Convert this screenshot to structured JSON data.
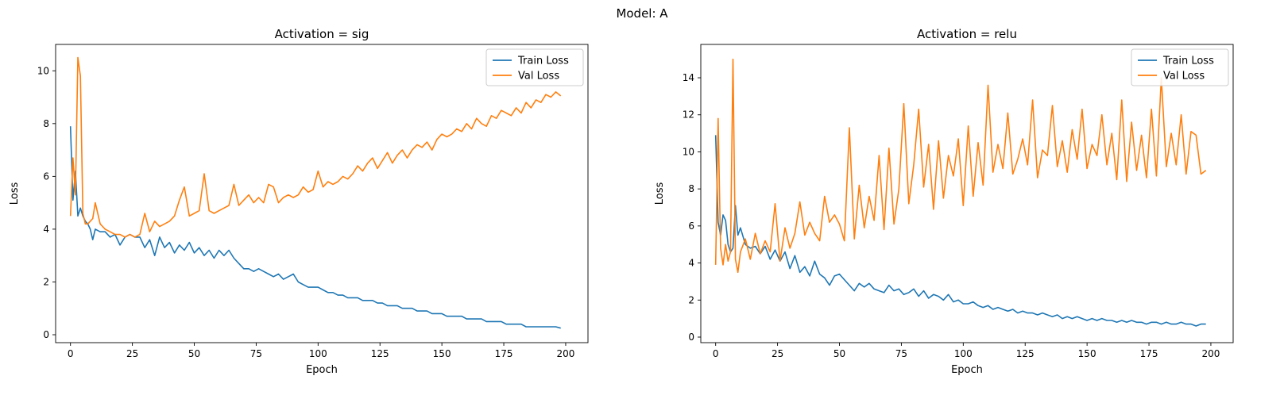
{
  "figure": {
    "suptitle": "Model: A"
  },
  "chart_data": [
    {
      "type": "line",
      "title": "Activation = sig",
      "xlabel": "Epoch",
      "ylabel": "Loss",
      "xlim": [
        -6,
        209
      ],
      "ylim": [
        -0.3,
        11.0
      ],
      "xticks": [
        0,
        25,
        50,
        75,
        100,
        125,
        150,
        175,
        200
      ],
      "yticks": [
        0,
        2,
        4,
        6,
        8,
        10
      ],
      "legend_position": "upper right",
      "series": [
        {
          "name": "Train Loss",
          "color": "#1f77b4",
          "x": [
            0,
            1,
            2,
            3,
            4,
            5,
            6,
            7,
            8,
            9,
            10,
            12,
            14,
            16,
            18,
            20,
            22,
            24,
            26,
            28,
            30,
            32,
            34,
            36,
            38,
            40,
            42,
            44,
            46,
            48,
            50,
            52,
            54,
            56,
            58,
            60,
            62,
            64,
            66,
            68,
            70,
            72,
            74,
            76,
            78,
            80,
            82,
            84,
            86,
            88,
            90,
            92,
            94,
            96,
            98,
            100,
            102,
            104,
            106,
            108,
            110,
            112,
            114,
            116,
            118,
            120,
            122,
            124,
            126,
            128,
            130,
            132,
            134,
            136,
            138,
            140,
            142,
            144,
            146,
            148,
            150,
            152,
            154,
            156,
            158,
            160,
            162,
            164,
            166,
            168,
            170,
            172,
            174,
            176,
            178,
            180,
            182,
            184,
            186,
            188,
            190,
            192,
            194,
            196,
            198
          ],
          "y": [
            7.9,
            5.1,
            6.2,
            4.5,
            4.8,
            4.5,
            4.3,
            4.2,
            4.0,
            3.6,
            4.0,
            3.9,
            3.9,
            3.7,
            3.8,
            3.4,
            3.7,
            3.8,
            3.7,
            3.7,
            3.3,
            3.6,
            3.0,
            3.7,
            3.3,
            3.5,
            3.1,
            3.4,
            3.2,
            3.5,
            3.1,
            3.3,
            3.0,
            3.2,
            2.9,
            3.2,
            3.0,
            3.2,
            2.9,
            2.7,
            2.5,
            2.5,
            2.4,
            2.5,
            2.4,
            2.3,
            2.2,
            2.3,
            2.1,
            2.2,
            2.3,
            2.0,
            1.9,
            1.8,
            1.8,
            1.8,
            1.7,
            1.6,
            1.6,
            1.5,
            1.5,
            1.4,
            1.4,
            1.4,
            1.3,
            1.3,
            1.3,
            1.2,
            1.2,
            1.1,
            1.1,
            1.1,
            1.0,
            1.0,
            1.0,
            0.9,
            0.9,
            0.9,
            0.8,
            0.8,
            0.8,
            0.7,
            0.7,
            0.7,
            0.7,
            0.6,
            0.6,
            0.6,
            0.6,
            0.5,
            0.5,
            0.5,
            0.5,
            0.4,
            0.4,
            0.4,
            0.4,
            0.3,
            0.3,
            0.3,
            0.3,
            0.3,
            0.3,
            0.3,
            0.25
          ]
        },
        {
          "name": "Val Loss",
          "color": "#ff7f0e",
          "x": [
            0,
            1,
            2,
            3,
            4,
            5,
            6,
            7,
            8,
            9,
            10,
            12,
            14,
            16,
            18,
            20,
            22,
            24,
            26,
            28,
            30,
            32,
            34,
            36,
            38,
            40,
            42,
            44,
            46,
            48,
            50,
            52,
            54,
            56,
            58,
            60,
            62,
            64,
            66,
            68,
            70,
            72,
            74,
            76,
            78,
            80,
            82,
            84,
            86,
            88,
            90,
            92,
            94,
            96,
            98,
            100,
            102,
            104,
            106,
            108,
            110,
            112,
            114,
            116,
            118,
            120,
            122,
            124,
            126,
            128,
            130,
            132,
            134,
            136,
            138,
            140,
            142,
            144,
            146,
            148,
            150,
            152,
            154,
            156,
            158,
            160,
            162,
            164,
            166,
            168,
            170,
            172,
            174,
            176,
            178,
            180,
            182,
            184,
            186,
            188,
            190,
            192,
            194,
            196,
            198
          ],
          "y": [
            4.5,
            6.7,
            5.3,
            10.5,
            9.8,
            4.6,
            4.2,
            4.2,
            4.3,
            4.4,
            5.0,
            4.2,
            4.0,
            3.9,
            3.8,
            3.8,
            3.7,
            3.8,
            3.7,
            3.8,
            4.6,
            3.9,
            4.3,
            4.1,
            4.2,
            4.3,
            4.5,
            5.1,
            5.6,
            4.5,
            4.6,
            4.7,
            6.1,
            4.7,
            4.6,
            4.7,
            4.8,
            4.9,
            5.7,
            4.9,
            5.1,
            5.3,
            5.0,
            5.2,
            5.0,
            5.7,
            5.6,
            5.0,
            5.2,
            5.3,
            5.2,
            5.3,
            5.6,
            5.4,
            5.5,
            6.2,
            5.6,
            5.8,
            5.7,
            5.8,
            6.0,
            5.9,
            6.1,
            6.4,
            6.2,
            6.5,
            6.7,
            6.3,
            6.6,
            6.9,
            6.5,
            6.8,
            7.0,
            6.7,
            7.0,
            7.2,
            7.1,
            7.3,
            7.0,
            7.4,
            7.6,
            7.5,
            7.6,
            7.8,
            7.7,
            8.0,
            7.8,
            8.2,
            8.0,
            7.9,
            8.3,
            8.2,
            8.5,
            8.4,
            8.3,
            8.6,
            8.4,
            8.8,
            8.6,
            8.9,
            8.8,
            9.1,
            9.0,
            9.2,
            9.05
          ]
        }
      ]
    },
    {
      "type": "line",
      "title": "Activation = relu",
      "xlabel": "Epoch",
      "ylabel": "Loss",
      "xlim": [
        -6,
        209
      ],
      "ylim": [
        -0.3,
        15.8
      ],
      "xticks": [
        0,
        25,
        50,
        75,
        100,
        125,
        150,
        175,
        200
      ],
      "yticks": [
        0,
        2,
        4,
        6,
        8,
        10,
        12,
        14
      ],
      "legend_position": "upper right",
      "series": [
        {
          "name": "Train Loss",
          "color": "#1f77b4",
          "x": [
            0,
            1,
            2,
            3,
            4,
            5,
            6,
            7,
            8,
            9,
            10,
            12,
            14,
            16,
            18,
            20,
            22,
            24,
            26,
            28,
            30,
            32,
            34,
            36,
            38,
            40,
            42,
            44,
            46,
            48,
            50,
            52,
            54,
            56,
            58,
            60,
            62,
            64,
            66,
            68,
            70,
            72,
            74,
            76,
            78,
            80,
            82,
            84,
            86,
            88,
            90,
            92,
            94,
            96,
            98,
            100,
            102,
            104,
            106,
            108,
            110,
            112,
            114,
            116,
            118,
            120,
            122,
            124,
            126,
            128,
            130,
            132,
            134,
            136,
            138,
            140,
            142,
            144,
            146,
            148,
            150,
            152,
            154,
            156,
            158,
            160,
            162,
            164,
            166,
            168,
            170,
            172,
            174,
            176,
            178,
            180,
            182,
            184,
            186,
            188,
            190,
            192,
            194,
            196,
            198
          ],
          "y": [
            10.9,
            6.2,
            5.5,
            6.6,
            6.3,
            5.0,
            4.6,
            4.8,
            7.1,
            5.5,
            5.9,
            5.0,
            4.8,
            4.9,
            4.5,
            4.9,
            4.2,
            4.7,
            4.1,
            4.6,
            3.7,
            4.4,
            3.5,
            3.8,
            3.3,
            4.1,
            3.4,
            3.2,
            2.8,
            3.3,
            3.4,
            3.1,
            2.8,
            2.5,
            2.9,
            2.7,
            2.9,
            2.6,
            2.5,
            2.4,
            2.8,
            2.5,
            2.6,
            2.3,
            2.4,
            2.6,
            2.2,
            2.5,
            2.1,
            2.3,
            2.2,
            2.0,
            2.3,
            1.9,
            2.0,
            1.8,
            1.8,
            1.9,
            1.7,
            1.6,
            1.7,
            1.5,
            1.6,
            1.5,
            1.4,
            1.5,
            1.3,
            1.4,
            1.3,
            1.3,
            1.2,
            1.3,
            1.2,
            1.1,
            1.2,
            1.0,
            1.1,
            1.0,
            1.1,
            1.0,
            0.9,
            1.0,
            0.9,
            1.0,
            0.9,
            0.9,
            0.8,
            0.9,
            0.8,
            0.9,
            0.8,
            0.8,
            0.7,
            0.8,
            0.8,
            0.7,
            0.8,
            0.7,
            0.7,
            0.8,
            0.7,
            0.7,
            0.6,
            0.7,
            0.7
          ]
        },
        {
          "name": "Val Loss",
          "color": "#ff7f0e",
          "x": [
            0,
            1,
            2,
            3,
            4,
            5,
            6,
            7,
            8,
            9,
            10,
            12,
            14,
            16,
            18,
            20,
            22,
            24,
            26,
            28,
            30,
            32,
            34,
            36,
            38,
            40,
            42,
            44,
            46,
            48,
            50,
            52,
            54,
            56,
            58,
            60,
            62,
            64,
            66,
            68,
            70,
            72,
            74,
            76,
            78,
            80,
            82,
            84,
            86,
            88,
            90,
            92,
            94,
            96,
            98,
            100,
            102,
            104,
            106,
            108,
            110,
            112,
            114,
            116,
            118,
            120,
            122,
            124,
            126,
            128,
            130,
            132,
            134,
            136,
            138,
            140,
            142,
            144,
            146,
            148,
            150,
            152,
            154,
            156,
            158,
            160,
            162,
            164,
            166,
            168,
            170,
            172,
            174,
            176,
            178,
            180,
            182,
            184,
            186,
            188,
            190,
            192,
            194,
            196,
            198
          ],
          "y": [
            3.9,
            11.8,
            4.8,
            3.9,
            5.0,
            4.1,
            4.6,
            15.0,
            4.2,
            3.5,
            4.6,
            5.3,
            4.2,
            5.6,
            4.5,
            5.2,
            4.6,
            7.2,
            4.1,
            5.9,
            4.8,
            5.6,
            7.3,
            5.5,
            6.2,
            5.6,
            5.2,
            7.6,
            6.2,
            6.6,
            6.1,
            5.2,
            11.3,
            5.3,
            8.2,
            5.9,
            7.6,
            6.3,
            9.8,
            5.8,
            10.2,
            6.1,
            8.0,
            12.6,
            7.2,
            9.3,
            12.3,
            8.1,
            10.4,
            6.9,
            10.6,
            7.5,
            9.8,
            8.7,
            10.7,
            7.1,
            11.4,
            7.6,
            10.5,
            8.2,
            13.6,
            8.9,
            10.4,
            9.1,
            12.1,
            8.8,
            9.6,
            10.7,
            9.3,
            12.8,
            8.6,
            10.1,
            9.8,
            12.5,
            9.2,
            10.6,
            8.9,
            11.2,
            9.6,
            12.3,
            9.1,
            10.4,
            9.8,
            12.0,
            9.3,
            11.0,
            8.5,
            12.8,
            8.4,
            11.6,
            9.0,
            10.9,
            8.6,
            12.3,
            8.7,
            14.0,
            9.2,
            11.0,
            9.3,
            12.0,
            8.8,
            11.1,
            10.9,
            8.8,
            9.0
          ]
        }
      ]
    }
  ]
}
